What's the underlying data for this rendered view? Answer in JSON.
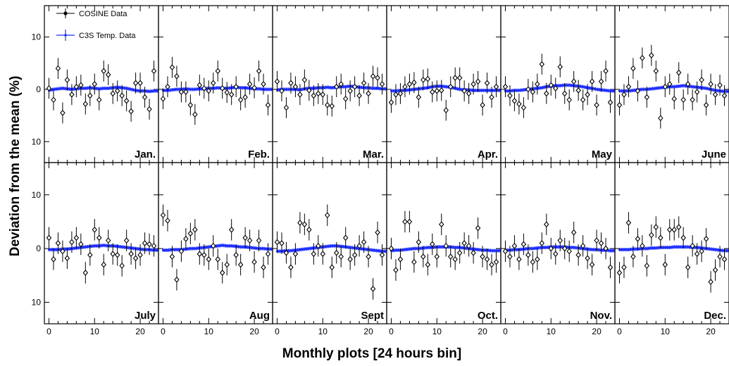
{
  "chart_data": {
    "type": "scatter",
    "title": "",
    "xlabel": "Monthly plots [24 hours bin]",
    "ylabel": "Deviation from the mean (%)",
    "xlim": [
      -1,
      24
    ],
    "ylim": [
      -14,
      16
    ],
    "x_ticks": [
      0,
      10,
      20
    ],
    "y_ticks": [
      {
        "value": 10,
        "label": "10"
      },
      {
        "value": 0,
        "label": "0"
      },
      {
        "value": -10,
        "label": "10"
      }
    ],
    "grid": false,
    "layout": {
      "rows": 2,
      "cols": 6
    },
    "legend": {
      "placement": "top-left",
      "entries": [
        {
          "label": "COSINE Data",
          "color": "#000000",
          "marker": "open-diamond"
        },
        {
          "label": "C3S Temp. Data",
          "color": "#1f2fff",
          "marker": "filled-circle"
        }
      ]
    },
    "colors": {
      "cosine": "#000000",
      "c3s": "#1f2fff"
    },
    "x": [
      0,
      1,
      2,
      3,
      4,
      5,
      6,
      7,
      8,
      9,
      10,
      11,
      12,
      13,
      14,
      15,
      16,
      17,
      18,
      19,
      20,
      21,
      22,
      23
    ],
    "panels": [
      {
        "month": "Jan.",
        "cosine": [
          0.2,
          -2.0,
          4.0,
          -4.5,
          1.8,
          -1.0,
          0.5,
          0.8,
          -2.8,
          -1.2,
          1.0,
          -2.0,
          3.5,
          2.8,
          -0.8,
          -0.3,
          -1.2,
          -2.2,
          -4.2,
          1.2,
          1.2,
          -1.5,
          -3.8,
          3.5
        ],
        "c3s": [
          -0.2,
          0.0,
          0.1,
          0.2,
          0.1,
          0.0,
          0.1,
          0.2,
          0.2,
          0.3,
          0.2,
          0.1,
          0.2,
          0.2,
          0.3,
          0.4,
          0.3,
          0.2,
          0.0,
          -0.2,
          -0.3,
          -0.3,
          -0.4,
          -0.3
        ]
      },
      {
        "month": "Feb.",
        "cosine": [
          -1.8,
          0.5,
          4.2,
          2.5,
          -0.5,
          -0.5,
          -3.0,
          -4.8,
          0.8,
          0.2,
          -0.3,
          1.2,
          3.5,
          0.2,
          -0.6,
          -1.0,
          0.5,
          -2.0,
          -1.5,
          1.0,
          0.3,
          3.5,
          1.0,
          -3.0
        ],
        "c3s": [
          -0.2,
          -0.2,
          -0.1,
          0.0,
          0.0,
          0.1,
          0.0,
          0.0,
          0.1,
          0.1,
          0.2,
          0.2,
          0.3,
          0.2,
          0.2,
          0.3,
          0.4,
          0.3,
          0.3,
          0.2,
          0.1,
          0.1,
          0.0,
          0.0
        ]
      },
      {
        "month": "Mar.",
        "cosine": [
          1.5,
          -0.3,
          -3.5,
          1.2,
          0.5,
          -1.0,
          1.8,
          -0.2,
          -1.2,
          -0.8,
          -1.0,
          -3.0,
          -3.2,
          0.5,
          1.0,
          -1.8,
          -0.3,
          0.5,
          -1.2,
          1.2,
          -0.8,
          2.5,
          2.2,
          1.0
        ],
        "c3s": [
          -0.1,
          0.0,
          0.0,
          0.0,
          0.0,
          -0.1,
          0.1,
          0.2,
          0.2,
          0.3,
          0.3,
          0.4,
          0.3,
          0.4,
          0.5,
          0.5,
          0.6,
          0.5,
          0.4,
          0.3,
          0.3,
          0.2,
          0.2,
          0.1
        ]
      },
      {
        "month": "Apr.",
        "cosine": [
          -2.5,
          -1.0,
          -0.8,
          0.5,
          1.0,
          1.3,
          -1.5,
          1.8,
          2.0,
          -0.5,
          -0.3,
          -0.2,
          -4.0,
          0.5,
          2.2,
          2.2,
          -0.3,
          -0.8,
          1.0,
          1.5,
          -3.0,
          1.2,
          -1.5,
          0.5
        ],
        "c3s": [
          -0.3,
          -0.3,
          -0.2,
          -0.2,
          -0.1,
          0.0,
          0.1,
          0.2,
          0.3,
          0.5,
          0.6,
          0.6,
          0.5,
          0.4,
          0.2,
          0.0,
          -0.1,
          -0.1,
          -0.2,
          -0.2,
          -0.2,
          -0.2,
          -0.2,
          -0.2
        ]
      },
      {
        "month": "May",
        "cosine": [
          0.5,
          -1.2,
          -2.2,
          -2.8,
          -3.5,
          0.0,
          -0.5,
          1.0,
          4.8,
          -0.8,
          0.8,
          0.2,
          4.3,
          -0.8,
          -2.0,
          1.5,
          -0.2,
          -2.0,
          -1.0,
          1.5,
          -3.0,
          1.5,
          3.5,
          -2.5
        ],
        "c3s": [
          -0.3,
          -0.3,
          -0.2,
          -0.2,
          -0.1,
          0.0,
          0.1,
          0.2,
          0.3,
          0.5,
          0.6,
          0.7,
          0.7,
          0.8,
          0.8,
          0.7,
          0.6,
          0.5,
          0.3,
          0.2,
          0.0,
          -0.1,
          -0.2,
          -0.3
        ]
      },
      {
        "month": "June",
        "cosine": [
          -3.0,
          -1.0,
          0.5,
          4.0,
          -0.3,
          6.0,
          -1.5,
          6.5,
          3.5,
          -5.5,
          0.5,
          1.0,
          -1.8,
          3.2,
          -2.0,
          1.0,
          -2.0,
          -0.5,
          1.8,
          -3.0,
          1.0,
          -1.0,
          0.8,
          -1.2
        ],
        "c3s": [
          -0.3,
          -0.3,
          -0.3,
          -0.2,
          -0.1,
          0.0,
          0.0,
          0.1,
          0.2,
          0.3,
          0.4,
          0.5,
          0.5,
          0.6,
          0.7,
          0.6,
          0.5,
          0.4,
          0.3,
          0.2,
          0.0,
          -0.2,
          -0.3,
          -0.4
        ]
      },
      {
        "month": "July",
        "cosine": [
          2.0,
          -2.0,
          1.0,
          -0.5,
          -1.8,
          1.2,
          2.0,
          0.8,
          -4.5,
          -1.2,
          3.5,
          2.0,
          -3.0,
          1.5,
          -1.0,
          -1.2,
          -3.2,
          1.5,
          -1.0,
          -1.8,
          -1.2,
          1.0,
          0.8,
          0.5
        ],
        "c3s": [
          -0.2,
          -0.2,
          -0.2,
          -0.1,
          -0.1,
          0.0,
          0.1,
          0.2,
          0.3,
          0.4,
          0.5,
          0.5,
          0.6,
          0.5,
          0.5,
          0.4,
          0.3,
          0.2,
          0.1,
          0.0,
          -0.1,
          -0.2,
          -0.2,
          -0.3
        ]
      },
      {
        "month": "Aug",
        "cosine": [
          6.2,
          5.2,
          -1.5,
          -5.8,
          -0.5,
          1.8,
          2.8,
          3.5,
          -1.0,
          -1.2,
          -2.0,
          0.5,
          -2.0,
          -4.5,
          -3.0,
          3.5,
          -1.2,
          -3.0,
          2.0,
          1.5,
          -2.5,
          1.5,
          -3.5,
          -1.0
        ],
        "c3s": [
          -0.3,
          -0.3,
          -0.2,
          -0.2,
          -0.2,
          -0.1,
          0.0,
          0.0,
          0.1,
          0.2,
          0.3,
          0.4,
          0.5,
          0.6,
          0.5,
          0.5,
          0.4,
          0.3,
          0.3,
          0.2,
          0.1,
          0.0,
          0.0,
          -0.1
        ]
      },
      {
        "month": "Sept",
        "cosine": [
          1.2,
          1.0,
          -0.8,
          -3.5,
          -1.0,
          4.8,
          4.5,
          3.5,
          -1.0,
          0.5,
          -1.0,
          6.2,
          -3.5,
          -0.8,
          -1.5,
          2.0,
          -2.0,
          -1.2,
          0.5,
          1.2,
          -1.5,
          -7.5,
          3.0,
          -1.2
        ],
        "c3s": [
          -0.5,
          -0.5,
          -0.4,
          -0.4,
          -0.3,
          -0.2,
          -0.1,
          0.0,
          0.1,
          0.2,
          0.3,
          0.4,
          0.5,
          0.5,
          0.4,
          0.3,
          0.2,
          0.1,
          0.0,
          -0.1,
          -0.2,
          -0.3,
          -0.4,
          -0.5
        ]
      },
      {
        "month": "Oct.",
        "cosine": [
          0.0,
          -4.0,
          -2.0,
          5.0,
          5.0,
          -2.5,
          1.2,
          -1.5,
          -3.0,
          0.8,
          -1.5,
          4.5,
          0.5,
          -1.5,
          -2.0,
          -0.8,
          1.0,
          0.5,
          -0.8,
          3.8,
          -1.5,
          -2.0,
          -3.0,
          -2.5
        ],
        "c3s": [
          -0.4,
          -0.3,
          -0.3,
          -0.2,
          -0.1,
          0.0,
          0.0,
          0.1,
          0.2,
          0.2,
          0.3,
          0.3,
          0.3,
          0.3,
          0.2,
          0.2,
          0.1,
          0.0,
          -0.1,
          -0.2,
          -0.3,
          -0.3,
          -0.4,
          -0.4
        ]
      },
      {
        "month": "Nov.",
        "cosine": [
          -0.5,
          -1.5,
          0.5,
          -2.0,
          0.8,
          -1.2,
          -2.5,
          -2.0,
          1.0,
          4.5,
          0.0,
          -1.0,
          1.5,
          0.0,
          -0.5,
          3.0,
          -1.2,
          0.5,
          -1.8,
          -3.0,
          1.5,
          1.0,
          0.0,
          -3.5
        ],
        "c3s": [
          -0.3,
          -0.3,
          -0.2,
          -0.2,
          -0.1,
          0.0,
          0.0,
          0.1,
          0.2,
          0.2,
          0.3,
          0.3,
          0.3,
          0.3,
          0.2,
          0.2,
          0.1,
          0.0,
          -0.1,
          -0.2,
          -0.2,
          -0.3,
          -0.3,
          -0.4
        ]
      },
      {
        "month": "Dec.",
        "cosine": [
          -4.5,
          -3.5,
          4.8,
          -1.5,
          1.8,
          0.5,
          -3.2,
          2.5,
          4.0,
          2.0,
          -3.0,
          3.5,
          3.5,
          4.0,
          2.0,
          -3.5,
          0.5,
          -1.0,
          -0.5,
          1.8,
          -6.2,
          -4.0,
          -1.5,
          -2.0
        ],
        "c3s": [
          -0.2,
          -0.2,
          -0.2,
          -0.1,
          -0.1,
          0.0,
          0.0,
          0.1,
          0.1,
          0.2,
          0.2,
          0.2,
          0.3,
          0.3,
          0.3,
          0.3,
          0.2,
          0.2,
          0.1,
          0.0,
          -0.1,
          -0.2,
          -0.3,
          -0.4
        ]
      }
    ]
  }
}
